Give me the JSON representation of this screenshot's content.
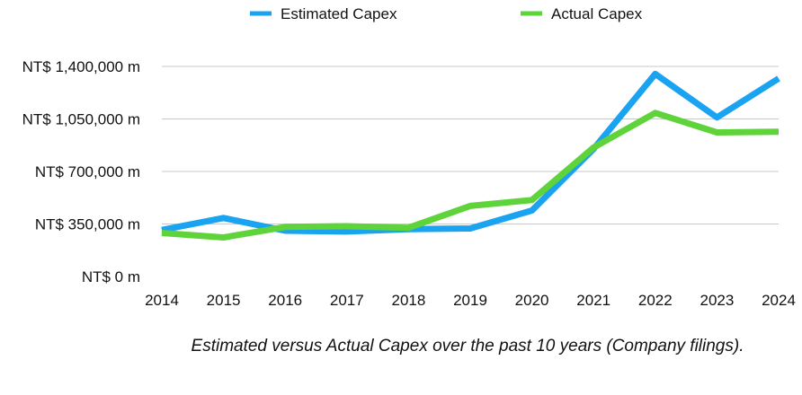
{
  "chart_data": {
    "type": "line",
    "categories": [
      "2014",
      "2015",
      "2016",
      "2017",
      "2018",
      "2019",
      "2020",
      "2021",
      "2022",
      "2023",
      "2024"
    ],
    "series": [
      {
        "name": "Estimated Capex",
        "color": "#1aa3f0",
        "values": [
          310000,
          390000,
          305000,
          300000,
          315000,
          320000,
          440000,
          850000,
          1350000,
          1060000,
          1320000
        ]
      },
      {
        "name": "Actual Capex",
        "color": "#5ed43a",
        "values": [
          290000,
          260000,
          330000,
          335000,
          325000,
          470000,
          510000,
          860000,
          1090000,
          960000,
          965000
        ]
      }
    ],
    "yticks": [
      "NT$ 0 m",
      "NT$ 350,000 m",
      "NT$ 700,000 m",
      "NT$ 1,050,000 m",
      "NT$ 1,400,000 m"
    ],
    "ytick_values": [
      0,
      350000,
      700000,
      1050000,
      1400000
    ],
    "ylim": [
      0,
      1400000
    ],
    "grid": true,
    "legend": "top-center"
  },
  "caption": "Estimated versus Actual Capex over the past 10 years (Company filings)."
}
